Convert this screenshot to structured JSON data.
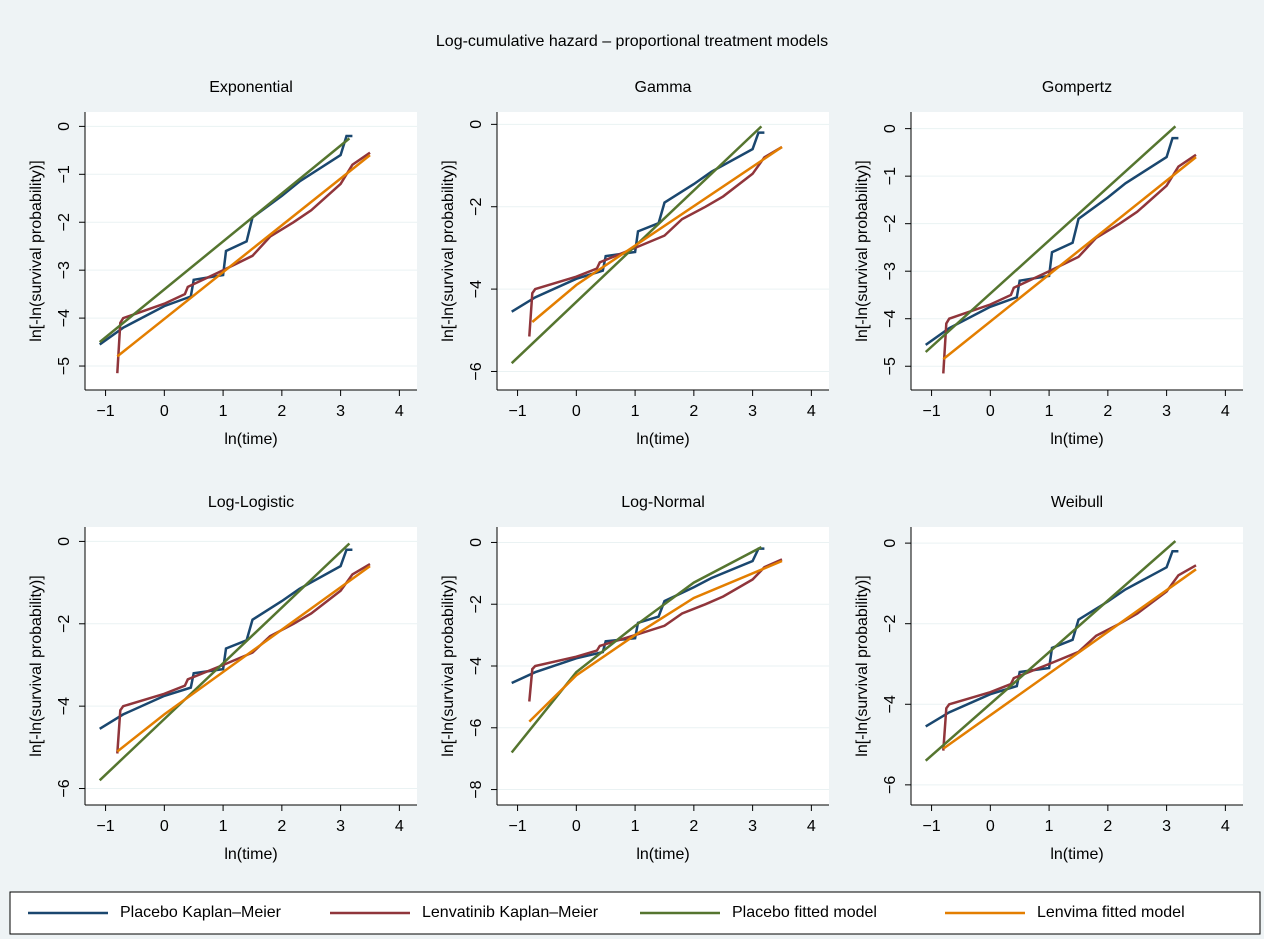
{
  "title": "Log-cumulative hazard – proportional treatment models",
  "chart_data": [
    {
      "type": "line",
      "title": "Exponential",
      "x_label": "ln(time)",
      "y_label": "ln[-ln(survival probability)]",
      "grid": true,
      "xlim": [
        -1.35,
        4.3
      ],
      "xticks": [
        {
          "value": -1,
          "label": "−1"
        },
        0,
        1,
        2,
        3,
        4
      ],
      "ylim": [
        -5.5,
        0.3
      ],
      "yticks": [
        0,
        {
          "value": -1,
          "label": "−1"
        },
        {
          "value": -2,
          "label": "−2"
        },
        {
          "value": -3,
          "label": "−3"
        },
        {
          "value": -4,
          "label": "−4"
        },
        {
          "value": -5,
          "label": "−5"
        }
      ],
      "series": [
        {
          "name": "Placebo Kaplan–Meier",
          "color": "#1a476f",
          "x": [
            -1.1,
            -0.7,
            0,
            0.45,
            0.5,
            1.0,
            1.05,
            1.4,
            1.5,
            2.0,
            2.3,
            3.0,
            3.1,
            3.2
          ],
          "values": [
            -4.55,
            -4.2,
            -3.75,
            -3.55,
            -3.2,
            -3.1,
            -2.6,
            -2.4,
            -1.9,
            -1.45,
            -1.15,
            -0.6,
            -0.2,
            -0.2
          ]
        },
        {
          "name": "Lenvatinib Kaplan–Meier",
          "color": "#90353b",
          "x": [
            -0.8,
            -0.75,
            -0.7,
            0,
            0.35,
            0.4,
            1.0,
            1.5,
            1.8,
            2.2,
            2.5,
            3.0,
            3.2,
            3.5
          ],
          "values": [
            -5.15,
            -4.1,
            -4.0,
            -3.7,
            -3.5,
            -3.35,
            -3.0,
            -2.7,
            -2.3,
            -2.0,
            -1.75,
            -1.2,
            -0.8,
            -0.55
          ]
        },
        {
          "name": "Placebo fitted model",
          "color": "#55752f",
          "x": [
            -1.1,
            3.15
          ],
          "values": [
            -4.5,
            -0.25
          ]
        },
        {
          "name": "Lenvima fitted model",
          "color": "#e37e00",
          "x": [
            -0.8,
            3.5
          ],
          "values": [
            -4.8,
            -0.6
          ]
        }
      ]
    },
    {
      "type": "line",
      "title": "Gamma",
      "x_label": "ln(time)",
      "y_label": "ln[-ln(survival probability)]",
      "grid": true,
      "xlim": [
        -1.35,
        4.3
      ],
      "xticks": [
        {
          "value": -1,
          "label": "−1"
        },
        0,
        1,
        2,
        3,
        4
      ],
      "ylim": [
        -6.45,
        0.3
      ],
      "yticks": [
        0,
        {
          "value": -2,
          "label": "−2"
        },
        {
          "value": -4,
          "label": "−4"
        },
        {
          "value": -6,
          "label": "−6"
        }
      ],
      "series": [
        {
          "name": "Placebo Kaplan–Meier",
          "color": "#1a476f",
          "x": [
            -1.1,
            -0.7,
            0,
            0.45,
            0.5,
            1.0,
            1.05,
            1.4,
            1.5,
            2.0,
            2.3,
            3.0,
            3.1,
            3.2
          ],
          "values": [
            -4.55,
            -4.2,
            -3.75,
            -3.55,
            -3.2,
            -3.1,
            -2.6,
            -2.4,
            -1.9,
            -1.45,
            -1.15,
            -0.6,
            -0.2,
            -0.2
          ]
        },
        {
          "name": "Lenvatinib Kaplan–Meier",
          "color": "#90353b",
          "x": [
            -0.8,
            -0.75,
            -0.7,
            0,
            0.35,
            0.4,
            1.0,
            1.5,
            1.8,
            2.2,
            2.5,
            3.0,
            3.2,
            3.5
          ],
          "values": [
            -5.15,
            -4.1,
            -4.0,
            -3.7,
            -3.5,
            -3.35,
            -3.0,
            -2.7,
            -2.3,
            -2.0,
            -1.75,
            -1.2,
            -0.8,
            -0.55
          ]
        },
        {
          "name": "Placebo fitted model",
          "color": "#55752f",
          "x": [
            -1.1,
            3.15
          ],
          "values": [
            -5.8,
            -0.05
          ]
        },
        {
          "name": "Lenvima fitted model",
          "color": "#e37e00",
          "x": [
            -0.75,
            0,
            3.5
          ],
          "values": [
            -4.8,
            -3.9,
            -0.55
          ]
        }
      ]
    },
    {
      "type": "line",
      "title": "Gompertz",
      "x_label": "ln(time)",
      "y_label": "ln[-ln(survival probability)]",
      "grid": true,
      "xlim": [
        -1.35,
        4.3
      ],
      "xticks": [
        {
          "value": -1,
          "label": "−1"
        },
        0,
        1,
        2,
        3,
        4
      ],
      "ylim": [
        -5.5,
        0.35
      ],
      "yticks": [
        0,
        {
          "value": -1,
          "label": "−1"
        },
        {
          "value": -2,
          "label": "−2"
        },
        {
          "value": -3,
          "label": "−3"
        },
        {
          "value": -4,
          "label": "−4"
        },
        {
          "value": -5,
          "label": "−5"
        }
      ],
      "series": [
        {
          "name": "Placebo Kaplan–Meier",
          "color": "#1a476f",
          "x": [
            -1.1,
            -0.7,
            0,
            0.45,
            0.5,
            1.0,
            1.05,
            1.4,
            1.5,
            2.0,
            2.3,
            3.0,
            3.1,
            3.2
          ],
          "values": [
            -4.55,
            -4.2,
            -3.75,
            -3.55,
            -3.2,
            -3.1,
            -2.6,
            -2.4,
            -1.9,
            -1.45,
            -1.15,
            -0.6,
            -0.2,
            -0.2
          ]
        },
        {
          "name": "Lenvatinib Kaplan–Meier",
          "color": "#90353b",
          "x": [
            -0.8,
            -0.75,
            -0.7,
            0,
            0.35,
            0.4,
            1.0,
            1.5,
            1.8,
            2.2,
            2.5,
            3.0,
            3.2,
            3.5
          ],
          "values": [
            -5.15,
            -4.1,
            -4.0,
            -3.7,
            -3.5,
            -3.35,
            -3.0,
            -2.7,
            -2.3,
            -2.0,
            -1.75,
            -1.2,
            -0.8,
            -0.55
          ]
        },
        {
          "name": "Placebo fitted model",
          "color": "#55752f",
          "x": [
            -1.1,
            3.15
          ],
          "values": [
            -4.7,
            0.05
          ]
        },
        {
          "name": "Lenvima fitted model",
          "color": "#e37e00",
          "x": [
            -0.8,
            3.5
          ],
          "values": [
            -4.85,
            -0.6
          ]
        }
      ]
    },
    {
      "type": "line",
      "title": "Log-Logistic",
      "x_label": "ln(time)",
      "y_label": "ln[-ln(survival probability)]",
      "grid": true,
      "xlim": [
        -1.35,
        4.3
      ],
      "xticks": [
        {
          "value": -1,
          "label": "−1"
        },
        0,
        1,
        2,
        3,
        4
      ],
      "ylim": [
        -6.4,
        0.35
      ],
      "yticks": [
        0,
        {
          "value": -2,
          "label": "−2"
        },
        {
          "value": -4,
          "label": "−4"
        },
        {
          "value": -6,
          "label": "−6"
        }
      ],
      "series": [
        {
          "name": "Placebo Kaplan–Meier",
          "color": "#1a476f",
          "x": [
            -1.1,
            -0.7,
            0,
            0.45,
            0.5,
            1.0,
            1.05,
            1.4,
            1.5,
            2.0,
            2.3,
            3.0,
            3.1,
            3.2
          ],
          "values": [
            -4.55,
            -4.2,
            -3.75,
            -3.55,
            -3.2,
            -3.1,
            -2.6,
            -2.4,
            -1.9,
            -1.45,
            -1.15,
            -0.6,
            -0.2,
            -0.2
          ]
        },
        {
          "name": "Lenvatinib Kaplan–Meier",
          "color": "#90353b",
          "x": [
            -0.8,
            -0.75,
            -0.7,
            0,
            0.35,
            0.4,
            1.0,
            1.5,
            1.8,
            2.2,
            2.5,
            3.0,
            3.2,
            3.5
          ],
          "values": [
            -5.15,
            -4.1,
            -4.0,
            -3.7,
            -3.5,
            -3.35,
            -3.0,
            -2.7,
            -2.3,
            -2.0,
            -1.75,
            -1.2,
            -0.8,
            -0.55
          ]
        },
        {
          "name": "Placebo fitted model",
          "color": "#55752f",
          "x": [
            -1.1,
            3.15
          ],
          "values": [
            -5.8,
            -0.05
          ]
        },
        {
          "name": "Lenvima fitted model",
          "color": "#e37e00",
          "x": [
            -0.8,
            0,
            3.5
          ],
          "values": [
            -5.1,
            -4.2,
            -0.6
          ]
        }
      ]
    },
    {
      "type": "line",
      "title": "Log-Normal",
      "x_label": "ln(time)",
      "y_label": "ln[-ln(survival probability)]",
      "grid": true,
      "xlim": [
        -1.35,
        4.3
      ],
      "xticks": [
        {
          "value": -1,
          "label": "−1"
        },
        0,
        1,
        2,
        3,
        4
      ],
      "ylim": [
        -8.5,
        0.5
      ],
      "yticks": [
        0,
        {
          "value": -2,
          "label": "−2"
        },
        {
          "value": -4,
          "label": "−4"
        },
        {
          "value": -6,
          "label": "−6"
        },
        {
          "value": -8,
          "label": "−8"
        }
      ],
      "series": [
        {
          "name": "Placebo Kaplan–Meier",
          "color": "#1a476f",
          "x": [
            -1.1,
            -0.7,
            0,
            0.45,
            0.5,
            1.0,
            1.05,
            1.4,
            1.5,
            2.0,
            2.3,
            3.0,
            3.1,
            3.2
          ],
          "values": [
            -4.55,
            -4.2,
            -3.75,
            -3.55,
            -3.2,
            -3.1,
            -2.6,
            -2.4,
            -1.9,
            -1.45,
            -1.15,
            -0.6,
            -0.2,
            -0.2
          ]
        },
        {
          "name": "Lenvatinib Kaplan–Meier",
          "color": "#90353b",
          "x": [
            -0.8,
            -0.75,
            -0.7,
            0,
            0.35,
            0.4,
            1.0,
            1.5,
            1.8,
            2.2,
            2.5,
            3.0,
            3.2,
            3.5
          ],
          "values": [
            -5.15,
            -4.1,
            -4.0,
            -3.7,
            -3.5,
            -3.35,
            -3.0,
            -2.7,
            -2.3,
            -2.0,
            -1.75,
            -1.2,
            -0.8,
            -0.55
          ]
        },
        {
          "name": "Placebo fitted model",
          "color": "#55752f",
          "x": [
            -1.1,
            0,
            1,
            2,
            3.15
          ],
          "values": [
            -6.8,
            -4.2,
            -2.7,
            -1.3,
            -0.15
          ]
        },
        {
          "name": "Lenvima fitted model",
          "color": "#e37e00",
          "x": [
            -0.8,
            0,
            1,
            2,
            3.5
          ],
          "values": [
            -5.8,
            -4.3,
            -3.0,
            -1.8,
            -0.6
          ]
        }
      ]
    },
    {
      "type": "line",
      "title": "Weibull",
      "x_label": "ln(time)",
      "y_label": "ln[-ln(survival probability)]",
      "grid": true,
      "xlim": [
        -1.35,
        4.3
      ],
      "xticks": [
        {
          "value": -1,
          "label": "−1"
        },
        0,
        1,
        2,
        3,
        4
      ],
      "ylim": [
        -6.5,
        0.4
      ],
      "yticks": [
        0,
        {
          "value": -2,
          "label": "−2"
        },
        {
          "value": -4,
          "label": "−4"
        },
        {
          "value": -6,
          "label": "−6"
        }
      ],
      "series": [
        {
          "name": "Placebo Kaplan–Meier",
          "color": "#1a476f",
          "x": [
            -1.1,
            -0.7,
            0,
            0.45,
            0.5,
            1.0,
            1.05,
            1.4,
            1.5,
            2.0,
            2.3,
            3.0,
            3.1,
            3.2
          ],
          "values": [
            -4.55,
            -4.2,
            -3.75,
            -3.55,
            -3.2,
            -3.1,
            -2.6,
            -2.4,
            -1.9,
            -1.45,
            -1.15,
            -0.6,
            -0.2,
            -0.2
          ]
        },
        {
          "name": "Lenvatinib Kaplan–Meier",
          "color": "#90353b",
          "x": [
            -0.8,
            -0.75,
            -0.7,
            0,
            0.35,
            0.4,
            1.0,
            1.5,
            1.8,
            2.2,
            2.5,
            3.0,
            3.2,
            3.5
          ],
          "values": [
            -5.15,
            -4.1,
            -4.0,
            -3.7,
            -3.5,
            -3.35,
            -3.0,
            -2.7,
            -2.3,
            -2.0,
            -1.75,
            -1.2,
            -0.8,
            -0.55
          ]
        },
        {
          "name": "Placebo fitted model",
          "color": "#55752f",
          "x": [
            -1.1,
            3.15
          ],
          "values": [
            -5.4,
            0.05
          ]
        },
        {
          "name": "Lenvima fitted model",
          "color": "#e37e00",
          "x": [
            -0.8,
            3.5
          ],
          "values": [
            -5.1,
            -0.65
          ]
        }
      ]
    }
  ]
}
